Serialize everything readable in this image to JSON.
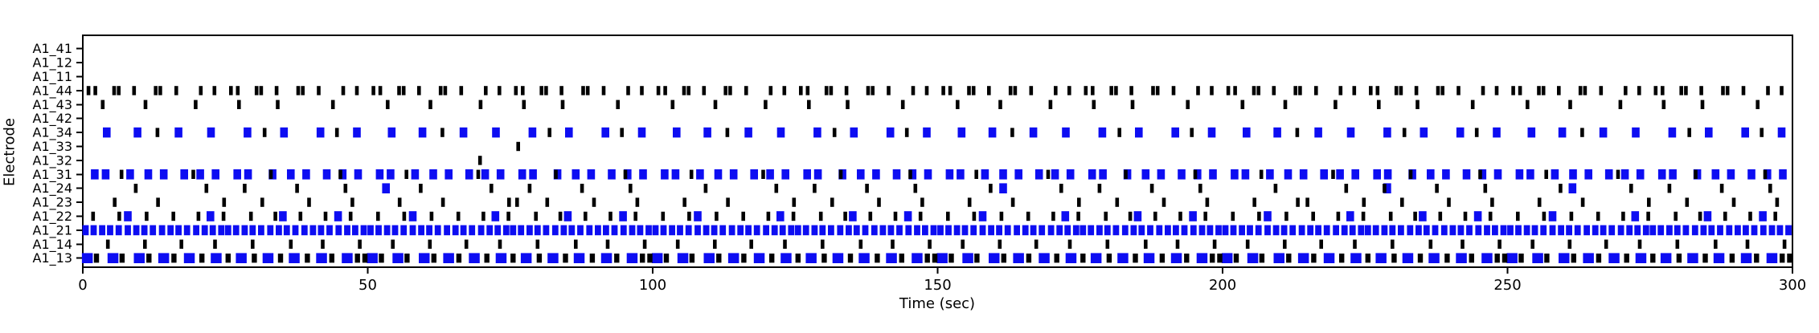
{
  "figure": {
    "background": "#ffffff"
  },
  "chart_data": {
    "type": "raster",
    "title": "",
    "xlabel": "Time (sec)",
    "ylabel": "Electrode",
    "xlim": [
      0,
      300
    ],
    "xticks": [
      0,
      50,
      100,
      150,
      200,
      250,
      300
    ],
    "grid": false,
    "legend": "none",
    "colors": {
      "spike_black": "#000000",
      "spike_blue": "#0d0df2",
      "axis": "#000000"
    },
    "mark_width_sec": {
      "black": 0.65,
      "blue": 1.35
    },
    "row_mark_width_overrides": {
      "A1_13": {
        "black": 0.9,
        "blue": 1.9
      },
      "A1_21": {
        "blue": 1.1
      }
    },
    "electrodes_top_to_bottom": [
      {
        "label": "A1_41",
        "black": [],
        "blue": []
      },
      {
        "label": "A1_12",
        "black": [],
        "blue": []
      },
      {
        "label": "A1_11",
        "black": [],
        "blue": []
      },
      {
        "label": "A1_44",
        "black": [
          1.0,
          2.2,
          5.5,
          6.3,
          9.0,
          12.8,
          13.6,
          16.4,
          20.7,
          23.1,
          26.0,
          27.2,
          30.5,
          31.3,
          34.0,
          37.8,
          38.6,
          41.4,
          45.7,
          48.1,
          51.0,
          52.2,
          55.5,
          56.3,
          59.0,
          62.8,
          63.6,
          66.4,
          70.7,
          73.1,
          76.0,
          77.2,
          80.5,
          81.3,
          84.0,
          87.8,
          88.6,
          91.4,
          95.7,
          98.1,
          101.0,
          102.2,
          105.5,
          106.3,
          109.0,
          112.8,
          113.6,
          116.4,
          120.7,
          123.1,
          126.0,
          127.2,
          130.5,
          131.3,
          134.0,
          137.8,
          138.6,
          141.4,
          145.7,
          148.1,
          151.0,
          152.2,
          155.5,
          156.3,
          159.0,
          162.8,
          163.6,
          166.4,
          170.7,
          173.1,
          176.0,
          177.2,
          180.5,
          181.3,
          184.0,
          187.8,
          188.6,
          191.4,
          195.7,
          198.1,
          201.0,
          202.2,
          205.5,
          206.3,
          209.0,
          212.8,
          213.6,
          216.4,
          220.7,
          223.1,
          226.0,
          227.2,
          230.5,
          231.3,
          234.0,
          237.8,
          238.6,
          241.4,
          245.7,
          248.1,
          251.0,
          252.2,
          255.5,
          256.3,
          259.0,
          262.8,
          263.6,
          266.4,
          270.7,
          273.1,
          276.0,
          277.2,
          280.5,
          281.3,
          284.0,
          287.8,
          288.6,
          291.4,
          295.7,
          298.1
        ],
        "blue": []
      },
      {
        "label": "A1_43",
        "black": [
          3.5,
          11.0,
          19.8,
          27.4,
          34.2,
          43.9,
          53.5,
          61.0,
          69.8,
          77.4,
          84.2,
          93.9,
          103.5,
          111.0,
          119.8,
          127.4,
          134.2,
          143.9,
          153.5,
          161.0,
          169.8,
          177.4,
          184.2,
          193.9,
          203.5,
          211.0,
          219.8,
          227.4,
          234.2,
          243.9,
          253.5,
          261.0,
          269.8,
          277.4,
          284.2,
          293.9
        ],
        "blue": []
      },
      {
        "label": "A1_42",
        "black": [],
        "blue": []
      },
      {
        "label": "A1_34",
        "black": [
          13.1,
          31.9,
          44.6,
          63.1,
          81.9,
          94.6,
          113.1,
          131.9,
          144.6,
          163.1,
          181.9,
          194.6,
          213.1,
          231.9,
          244.6,
          263.1,
          281.9,
          294.6
        ],
        "blue": [
          4.2,
          9.6,
          16.8,
          22.5,
          28.9,
          35.3,
          41.7,
          48.1,
          54.2,
          59.6,
          66.8,
          72.5,
          78.9,
          85.3,
          91.7,
          98.1,
          104.2,
          109.6,
          116.8,
          122.5,
          128.9,
          135.3,
          141.7,
          148.1,
          154.2,
          159.6,
          166.8,
          172.5,
          178.9,
          185.3,
          191.7,
          198.1,
          204.2,
          209.6,
          216.8,
          222.5,
          228.9,
          235.3,
          241.7,
          248.1,
          254.2,
          259.6,
          266.8,
          272.5,
          278.9,
          285.3,
          291.7,
          298.1
        ]
      },
      {
        "label": "A1_33",
        "black": [
          76.4
        ],
        "blue": []
      },
      {
        "label": "A1_32",
        "black": [
          69.7
        ],
        "blue": []
      },
      {
        "label": "A1_31",
        "black": [
          6.8,
          19.4,
          33.0,
          45.2,
          56.8,
          69.4,
          83.0,
          95.2,
          106.8,
          119.4,
          133.0,
          145.2,
          156.8,
          169.4,
          183.0,
          195.2,
          206.8,
          219.4,
          233.0,
          245.2,
          256.8,
          269.4,
          283.0,
          295.2
        ],
        "blue": [
          2.1,
          4.0,
          8.3,
          11.5,
          14.2,
          17.8,
          20.6,
          23.3,
          27.1,
          29.0,
          33.3,
          36.5,
          39.2,
          42.8,
          45.6,
          48.3,
          52.1,
          54.0,
          58.3,
          61.5,
          64.2,
          67.8,
          70.6,
          73.3,
          77.1,
          79.0,
          83.3,
          86.5,
          89.2,
          92.8,
          95.6,
          98.3,
          102.1,
          104.0,
          108.3,
          111.5,
          114.2,
          117.8,
          120.6,
          123.3,
          127.1,
          129.0,
          133.3,
          136.5,
          139.2,
          142.8,
          145.6,
          148.3,
          152.1,
          154.0,
          158.3,
          161.5,
          164.2,
          167.8,
          170.6,
          173.3,
          177.1,
          179.0,
          183.3,
          186.5,
          189.2,
          192.8,
          195.6,
          198.3,
          202.1,
          204.0,
          208.3,
          211.5,
          214.2,
          217.8,
          220.6,
          223.3,
          227.1,
          229.0,
          233.3,
          236.5,
          239.2,
          242.8,
          245.6,
          248.3,
          252.1,
          254.0,
          258.3,
          261.5,
          264.2,
          267.8,
          270.6,
          273.3,
          277.1,
          279.0,
          283.3,
          286.5,
          289.2,
          292.8,
          295.6,
          298.3
        ]
      },
      {
        "label": "A1_24",
        "black": [
          9.3,
          21.7,
          28.4,
          37.6,
          46.1,
          59.3,
          71.7,
          78.4,
          87.6,
          96.1,
          109.3,
          121.7,
          128.4,
          137.6,
          146.1,
          159.3,
          171.7,
          178.4,
          187.6,
          196.1,
          209.3,
          221.7,
          228.4,
          237.6,
          246.1,
          259.3,
          271.7,
          278.4,
          287.6,
          296.1
        ],
        "blue": [
          53.2,
          161.5,
          228.9,
          261.4
        ]
      },
      {
        "label": "A1_23",
        "black": [
          5.6,
          13.2,
          24.8,
          31.5,
          39.7,
          47.3,
          55.6,
          63.2,
          74.8,
          76.2,
          81.5,
          89.7,
          97.3,
          105.6,
          113.2,
          124.8,
          131.5,
          139.7,
          147.3,
          155.6,
          163.2,
          174.8,
          181.5,
          189.7,
          197.3,
          205.6,
          213.2,
          214.9,
          224.8,
          231.5,
          239.7,
          247.3,
          255.6,
          263.2,
          274.8,
          281.5,
          289.7,
          297.3
        ],
        "blue": []
      },
      {
        "label": "A1_22",
        "black": [
          1.8,
          6.4,
          11.2,
          15.9,
          20.3,
          24.7,
          29.5,
          33.8,
          38.2,
          42.6,
          47.0,
          51.8,
          56.4,
          61.2,
          65.9,
          70.3,
          74.7,
          79.5,
          83.8,
          88.2,
          92.6,
          97.0,
          101.8,
          106.4,
          111.2,
          115.9,
          120.3,
          124.7,
          129.5,
          133.8,
          138.2,
          142.6,
          147.0,
          151.8,
          156.4,
          161.2,
          165.9,
          170.3,
          174.7,
          179.5,
          183.8,
          188.2,
          192.6,
          197.0,
          201.8,
          206.4,
          211.2,
          215.9,
          220.3,
          224.7,
          229.5,
          233.8,
          238.2,
          242.6,
          247.0,
          251.8,
          256.4,
          261.2,
          265.9,
          270.3,
          274.7,
          279.5,
          283.8,
          288.2,
          292.6,
          297.0
        ],
        "blue": [
          7.9,
          22.4,
          35.1,
          44.8,
          57.9,
          72.4,
          85.1,
          94.8,
          107.9,
          122.4,
          135.1,
          144.8,
          157.9,
          172.4,
          185.1,
          194.8,
          207.9,
          222.4,
          235.1,
          244.8,
          257.9,
          272.4,
          285.1,
          294.8
        ]
      },
      {
        "label": "A1_21",
        "black": [],
        "blue": [
          0.5,
          1.9,
          3.4,
          4.8,
          6.3,
          7.9,
          9.4,
          10.8,
          12.3,
          13.9,
          15.4,
          16.8,
          18.3,
          19.9,
          21.4,
          22.8,
          24.3,
          25.5,
          26.9,
          28.4,
          29.8,
          31.3,
          32.9,
          34.4,
          35.8,
          37.3,
          38.9,
          40.4,
          41.8,
          43.3,
          44.9,
          46.4,
          47.8,
          49.3,
          50.5,
          51.9,
          53.4,
          54.8,
          56.3,
          57.9,
          59.4,
          60.8,
          62.3,
          63.9,
          65.4,
          66.8,
          68.3,
          69.9,
          71.4,
          72.8,
          74.3,
          75.5,
          76.9,
          78.4,
          79.8,
          81.3,
          82.9,
          84.4,
          85.8,
          87.3,
          88.9,
          90.4,
          91.8,
          93.3,
          94.9,
          96.4,
          97.8,
          99.3,
          100.5,
          101.9,
          103.4,
          104.8,
          106.3,
          107.9,
          109.4,
          110.8,
          112.3,
          113.9,
          115.4,
          116.8,
          118.3,
          119.9,
          121.4,
          122.8,
          124.3,
          125.5,
          126.9,
          128.4,
          129.8,
          131.3,
          132.9,
          134.4,
          135.8,
          137.3,
          138.9,
          140.4,
          141.8,
          143.3,
          144.9,
          146.4,
          147.8,
          149.3,
          150.5,
          151.9,
          153.4,
          154.8,
          156.3,
          157.9,
          159.4,
          160.8,
          162.3,
          163.9,
          165.4,
          166.8,
          168.3,
          169.9,
          171.4,
          172.8,
          174.3,
          175.5,
          176.9,
          178.4,
          179.8,
          181.3,
          182.9,
          184.4,
          185.8,
          187.3,
          188.9,
          190.4,
          191.8,
          193.3,
          194.9,
          196.4,
          197.8,
          199.3,
          200.5,
          201.9,
          203.4,
          204.8,
          206.3,
          207.9,
          209.4,
          210.8,
          212.3,
          213.9,
          215.4,
          216.8,
          218.3,
          219.9,
          221.4,
          222.8,
          224.3,
          225.5,
          226.9,
          228.4,
          229.8,
          231.3,
          232.9,
          234.4,
          235.8,
          237.3,
          238.9,
          240.4,
          241.8,
          243.3,
          244.9,
          246.4,
          247.8,
          249.3,
          250.5,
          251.9,
          253.4,
          254.8,
          256.3,
          257.9,
          259.4,
          260.8,
          262.3,
          263.9,
          265.4,
          266.8,
          268.3,
          269.9,
          271.4,
          272.8,
          274.3,
          275.5,
          276.9,
          278.4,
          279.8,
          281.3,
          282.9,
          284.4,
          285.8,
          287.3,
          288.9,
          290.4,
          291.8,
          293.3,
          294.9,
          296.4,
          297.8,
          299.3
        ]
      },
      {
        "label": "A1_14",
        "black": [
          4.4,
          10.9,
          17.3,
          23.2,
          29.8,
          36.5,
          42.1,
          48.6,
          54.4,
          60.9,
          67.3,
          73.2,
          79.8,
          86.5,
          92.1,
          98.6,
          104.4,
          110.9,
          117.3,
          123.2,
          129.8,
          136.5,
          142.1,
          148.6,
          154.4,
          160.9,
          167.3,
          173.2,
          179.8,
          186.5,
          192.1,
          198.6,
          204.4,
          210.9,
          217.3,
          223.2,
          229.8,
          236.5,
          242.1,
          248.6,
          254.4,
          260.9,
          267.3,
          273.2,
          279.8,
          286.5,
          292.1,
          298.6
        ],
        "blue": []
      },
      {
        "label": "A1_13",
        "black": [
          2.4,
          6.9,
          11.6,
          16.0,
          20.9,
          25.5,
          30.1,
          34.7,
          39.4,
          43.7,
          48.2,
          49.5,
          52.4,
          56.9,
          61.6,
          66.0,
          70.9,
          75.5,
          80.1,
          84.7,
          89.4,
          93.7,
          98.2,
          99.5,
          102.4,
          106.9,
          111.6,
          116.0,
          120.9,
          125.5,
          130.1,
          134.7,
          139.4,
          143.7,
          148.2,
          149.5,
          152.4,
          156.9,
          161.6,
          166.0,
          170.9,
          175.5,
          180.1,
          184.7,
          189.4,
          193.7,
          198.2,
          199.5,
          202.4,
          206.9,
          211.6,
          216.0,
          220.9,
          225.5,
          230.1,
          234.7,
          239.4,
          243.7,
          248.2,
          249.5,
          252.4,
          256.9,
          261.6,
          266.0,
          270.9,
          275.5,
          280.1,
          284.7,
          289.4,
          293.7,
          298.2,
          299.5
        ],
        "blue": [
          0.8,
          5.3,
          9.9,
          14.2,
          18.7,
          23.4,
          27.8,
          32.5,
          37.1,
          41.9,
          46.4,
          50.8,
          55.3,
          59.9,
          64.2,
          68.7,
          73.4,
          77.8,
          82.5,
          87.1,
          91.9,
          96.4,
          100.8,
          105.3,
          109.9,
          114.2,
          118.7,
          123.4,
          127.8,
          132.5,
          137.1,
          141.9,
          146.4,
          150.8,
          155.3,
          159.9,
          164.2,
          168.7,
          173.4,
          177.8,
          182.5,
          187.1,
          191.9,
          196.4,
          200.8,
          205.3,
          209.9,
          214.2,
          218.7,
          223.4,
          227.8,
          232.5,
          237.1,
          241.9,
          246.4,
          250.8,
          255.3,
          259.9,
          264.2,
          268.7,
          273.4,
          277.8,
          282.5,
          287.1,
          291.9,
          296.4
        ]
      }
    ]
  }
}
